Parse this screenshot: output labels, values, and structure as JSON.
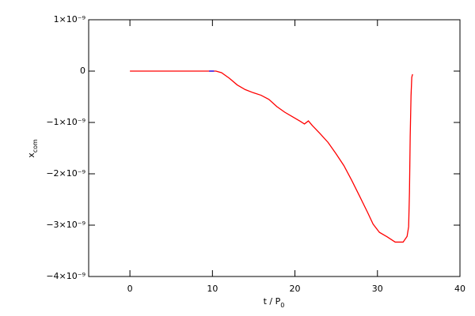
{
  "chart_data": {
    "type": "line",
    "xlabel": {
      "main": "t / P",
      "sub": "0"
    },
    "ylabel": {
      "main": "x",
      "sub": "com"
    },
    "xlim": [
      -5,
      40
    ],
    "xticks": [
      0,
      10,
      20,
      30,
      40
    ],
    "ylim": [
      -4e-09,
      1e-09
    ],
    "yticks": [
      {
        "value": -4e-09,
        "label": "−4×10⁻⁹"
      },
      {
        "value": -3e-09,
        "label": "−3×10⁻⁹"
      },
      {
        "value": -2e-09,
        "label": "−2×10⁻⁹"
      },
      {
        "value": -1e-09,
        "label": "−1×10⁻⁹"
      },
      0,
      {
        "value": 1e-09,
        "label": "1×10⁻⁹"
      }
    ],
    "series": [
      {
        "color": "#ff0000",
        "x": [
          0,
          9.57,
          10.43,
          11.1,
          12.06,
          13.01,
          13.97,
          14.93,
          15.89,
          16.84,
          17.8,
          18.76,
          19.71,
          20.67,
          21.15,
          21.63,
          22.11,
          23.06,
          24.02,
          24.98,
          25.93,
          26.89,
          27.85,
          28.8,
          29.47,
          30.24,
          31.2,
          32.15,
          33.11,
          33.59,
          33.78,
          33.88,
          33.97,
          34.07,
          34.16,
          34.26
        ],
        "values": [
          0,
          0,
          0,
          -3.1e-11,
          -1.4e-10,
          -2.7e-10,
          -3.6e-10,
          -4.2e-10,
          -4.7e-10,
          -5.5e-10,
          -6.9e-10,
          -8e-10,
          -8.9e-10,
          -9.8e-10,
          -1.03e-09,
          -9.7e-10,
          -1.06e-09,
          -1.22e-09,
          -1.39e-09,
          -1.61e-09,
          -1.84e-09,
          -2.13e-09,
          -2.44e-09,
          -2.75e-09,
          -2.98e-09,
          -3.14e-09,
          -3.23e-09,
          -3.33e-09,
          -3.33e-09,
          -3.22e-09,
          -3.03e-09,
          -2.36e-09,
          -1.27e-09,
          -4.8e-10,
          -1.2e-10,
          -6e-11
        ]
      },
      {
        "color": "#0000ff",
        "x": [
          9.6,
          10.2
        ],
        "values": [
          0,
          0
        ]
      }
    ]
  }
}
